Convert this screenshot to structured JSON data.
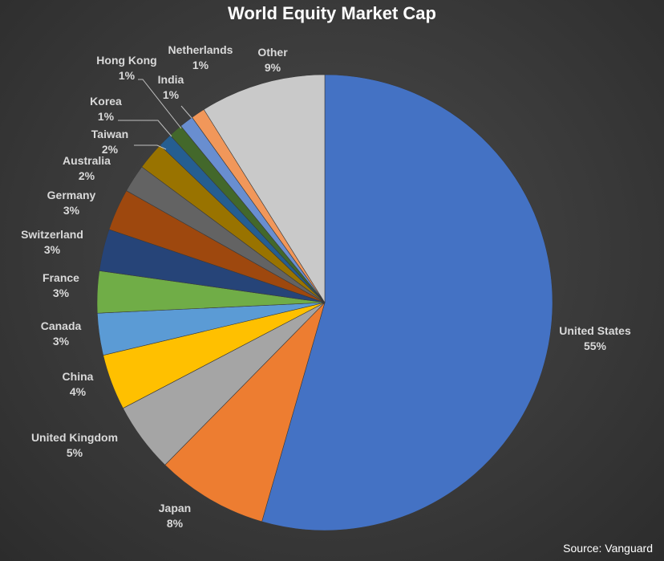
{
  "chart_data": {
    "type": "pie",
    "title": "World Equity Market Cap",
    "source": "Source: Vanguard",
    "slices": [
      {
        "label": "United States",
        "value": 55,
        "pct": "55%",
        "color": "#4472c4"
      },
      {
        "label": "Japan",
        "value": 8,
        "pct": "8%",
        "color": "#ed7d31"
      },
      {
        "label": "United Kingdom",
        "value": 5,
        "pct": "5%",
        "color": "#a5a5a5"
      },
      {
        "label": "China",
        "value": 4,
        "pct": "4%",
        "color": "#ffc000"
      },
      {
        "label": "Canada",
        "value": 3,
        "pct": "3%",
        "color": "#5b9bd5"
      },
      {
        "label": "France",
        "value": 3,
        "pct": "3%",
        "color": "#70ad47"
      },
      {
        "label": "Switzerland",
        "value": 3,
        "pct": "3%",
        "color": "#264478"
      },
      {
        "label": "Germany",
        "value": 3,
        "pct": "3%",
        "color": "#9e480e"
      },
      {
        "label": "Australia",
        "value": 2,
        "pct": "2%",
        "color": "#636363"
      },
      {
        "label": "Taiwan",
        "value": 2,
        "pct": "2%",
        "color": "#997300"
      },
      {
        "label": "Korea",
        "value": 1,
        "pct": "1%",
        "color": "#255e91"
      },
      {
        "label": "Hong Kong",
        "value": 1,
        "pct": "1%",
        "color": "#43682b"
      },
      {
        "label": "India",
        "value": 1,
        "pct": "1%",
        "color": "#698ed0"
      },
      {
        "label": "Netherlands",
        "value": 1,
        "pct": "1%",
        "color": "#f1975a"
      },
      {
        "label": "Other",
        "value": 9,
        "pct": "9%",
        "color": "#c9c9c9"
      }
    ]
  }
}
